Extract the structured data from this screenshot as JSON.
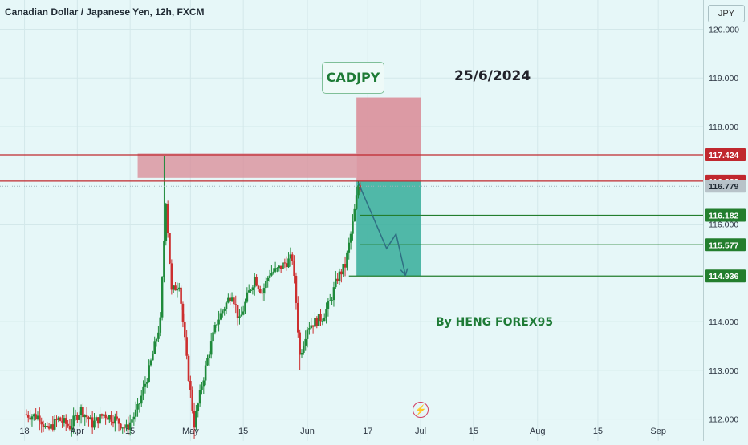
{
  "header": {
    "title": "Canadian Dollar / Japanese Yen, 12h, FXCM",
    "currency_button": "JPY"
  },
  "annotations": {
    "pair_label": "CADJPY",
    "date_label": "25/6/2024",
    "author_label": "By HENG FOREX95",
    "bolt_icon": "lightning-icon"
  },
  "colors": {
    "up": "#1f8a3b",
    "down": "#cc2f2f",
    "red_zone": "#d98a95",
    "green_zone": "#35ad9a",
    "red_line": "#c0282e",
    "green_line": "#237e2e",
    "arrow": "#2f6f83",
    "background": "#e6f7f8"
  },
  "chart_data": {
    "type": "candlestick",
    "title": "Canadian Dollar / Japanese Yen, 12h, FXCM",
    "ylim": [
      111.55,
      120.6
    ],
    "y_ticks": [
      {
        "v": 112,
        "label": "112.000"
      },
      {
        "v": 113,
        "label": "113.000"
      },
      {
        "v": 114,
        "label": "114.000"
      },
      {
        "v": 116,
        "label": "116.000"
      },
      {
        "v": 118,
        "label": "118.000"
      },
      {
        "v": 119,
        "label": "119.000"
      },
      {
        "v": 120,
        "label": "120.000"
      }
    ],
    "x_ticks": [
      {
        "t": 18,
        "label": "18"
      },
      {
        "t": 32,
        "label": "Apr"
      },
      {
        "t": 46,
        "label": "15"
      },
      {
        "t": 62,
        "label": "May"
      },
      {
        "t": 76,
        "label": "15"
      },
      {
        "t": 93,
        "label": "Jun"
      },
      {
        "t": 109,
        "label": "17"
      },
      {
        "t": 123,
        "label": "Jul"
      },
      {
        "t": 137,
        "label": "15"
      },
      {
        "t": 154,
        "label": "Aug"
      },
      {
        "t": 170,
        "label": "15"
      },
      {
        "t": 186,
        "label": "Sep"
      }
    ],
    "price_labels": [
      {
        "v": 117.424,
        "label": "117.424",
        "color": "#c0282e"
      },
      {
        "v": 116.883,
        "label": "116.883",
        "color": "#c0282e"
      },
      {
        "v": 116.779,
        "label": "116.779",
        "color": "#b8c3c9",
        "dark_text": true
      },
      {
        "v": 116.182,
        "label": "116.182",
        "color": "#237e2e"
      },
      {
        "v": 115.577,
        "label": "115.577",
        "color": "#237e2e"
      },
      {
        "v": 114.936,
        "label": "114.936",
        "color": "#237e2e"
      }
    ],
    "anchors": [
      [
        18,
        112.1
      ],
      [
        22,
        112.05
      ],
      [
        24,
        111.75
      ],
      [
        27,
        112.0
      ],
      [
        30,
        111.85
      ],
      [
        33,
        112.2
      ],
      [
        36,
        111.9
      ],
      [
        39,
        112.1
      ],
      [
        42,
        112.0
      ],
      [
        45,
        111.8
      ],
      [
        48,
        112.2
      ],
      [
        51,
        113.0
      ],
      [
        54,
        114.0
      ],
      [
        55.5,
        116.5
      ],
      [
        57,
        114.6
      ],
      [
        59,
        114.8
      ],
      [
        60,
        114.0
      ],
      [
        61,
        113.2
      ],
      [
        63,
        111.9
      ],
      [
        65,
        112.7
      ],
      [
        67,
        113.4
      ],
      [
        69,
        114.0
      ],
      [
        71,
        114.3
      ],
      [
        73,
        114.6
      ],
      [
        75,
        114.0
      ],
      [
        77,
        114.5
      ],
      [
        79,
        114.9
      ],
      [
        81,
        114.6
      ],
      [
        83,
        115.0
      ],
      [
        85,
        115.05
      ],
      [
        87,
        115.2
      ],
      [
        89,
        115.3
      ],
      [
        90,
        114.4
      ],
      [
        91,
        113.3
      ],
      [
        93,
        113.9
      ],
      [
        95,
        114.0
      ],
      [
        97,
        114.1
      ],
      [
        99,
        114.4
      ],
      [
        101,
        114.9
      ],
      [
        103,
        115.15
      ],
      [
        105,
        116.0
      ],
      [
        106.5,
        116.8
      ],
      [
        107,
        116.78
      ]
    ],
    "zone_x": [
      106,
      123
    ],
    "sell_zone": {
      "x": [
        48,
        106
      ],
      "y": [
        116.95,
        117.45
      ]
    },
    "risk_box": {
      "y": [
        116.883,
        118.6
      ]
    },
    "target_box": {
      "y": [
        114.936,
        116.883
      ]
    },
    "horizontal_lines": [
      {
        "v": 117.424,
        "from": 0,
        "color": "#c0282e"
      },
      {
        "v": 116.883,
        "from": 0,
        "color": "#c0282e"
      },
      {
        "v": 116.182,
        "from": 107,
        "color": "#237e2e"
      },
      {
        "v": 115.577,
        "from": 107,
        "color": "#237e2e"
      },
      {
        "v": 114.936,
        "from": 104,
        "color": "#237e2e"
      }
    ],
    "arrow_path": [
      [
        106.5,
        116.85
      ],
      [
        114,
        115.5
      ],
      [
        116.5,
        115.8
      ],
      [
        119,
        114.95
      ]
    ]
  }
}
